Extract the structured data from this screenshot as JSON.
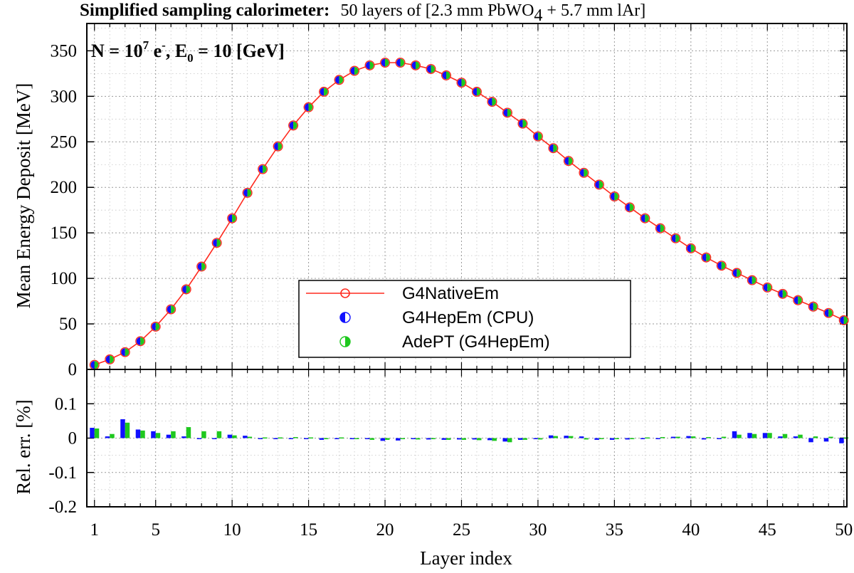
{
  "title": {
    "bold": "Simplified sampling calorimeter:",
    "detail_prefix": "50 layers of [2.3 mm PbWO",
    "detail_sub": "4",
    "detail_suffix": " + 5.7 mm lAr]"
  },
  "annotation": {
    "n_prefix": "N = 10",
    "n_exp": "7",
    "particle": " e",
    "particle_sup": "-",
    "e_prefix": ", E",
    "e_sub": "0",
    "e_suffix": " = 10 [GeV]"
  },
  "colors": {
    "native": "#ff2a1f",
    "hepem": "#1010ff",
    "adept": "#1ec81e",
    "grid": "#9a9a9a"
  },
  "chart_data": [
    {
      "type": "line",
      "xlabel": "Layer index",
      "ylabel": "Mean Energy Deposit [MeV]",
      "ylim": [
        0,
        380
      ],
      "xlim": [
        0.5,
        50.2
      ],
      "yticks": [
        "0",
        "50",
        "100",
        "150",
        "200",
        "250",
        "300",
        "350"
      ],
      "ytick_values": [
        0,
        50,
        100,
        150,
        200,
        250,
        300,
        350
      ],
      "xticks": [
        "1",
        "5",
        "10",
        "15",
        "20",
        "25",
        "30",
        "35",
        "40",
        "45",
        "50"
      ],
      "xtick_values": [
        1,
        5,
        10,
        15,
        20,
        25,
        30,
        35,
        40,
        45,
        50
      ],
      "grid": true,
      "legend_position": "bottom-center",
      "x": [
        1,
        2,
        3,
        4,
        5,
        6,
        7,
        8,
        9,
        10,
        11,
        12,
        13,
        14,
        15,
        16,
        17,
        18,
        19,
        20,
        21,
        22,
        23,
        24,
        25,
        26,
        27,
        28,
        29,
        30,
        31,
        32,
        33,
        34,
        35,
        36,
        37,
        38,
        39,
        40,
        41,
        42,
        43,
        44,
        45,
        46,
        47,
        48,
        49,
        50
      ],
      "series": [
        {
          "name": "G4NativeEm",
          "values": [
            5,
            11,
            19,
            31,
            47,
            66,
            88,
            113,
            139,
            166,
            194,
            220,
            245,
            268,
            288,
            305,
            318,
            328,
            334,
            337,
            337,
            334,
            330,
            323,
            315,
            305,
            294,
            282,
            270,
            256,
            243,
            229,
            216,
            203,
            190,
            178,
            166,
            155,
            144,
            133,
            123,
            114,
            106,
            98,
            90,
            83,
            76,
            69,
            62,
            54
          ]
        },
        {
          "name": "G4HepEm (CPU)",
          "values": [
            5,
            11,
            19,
            31,
            47,
            66,
            88,
            113,
            139,
            166,
            194,
            220,
            245,
            268,
            288,
            305,
            318,
            328,
            334,
            337,
            337,
            334,
            330,
            323,
            315,
            305,
            294,
            282,
            270,
            256,
            243,
            229,
            216,
            203,
            190,
            178,
            166,
            155,
            144,
            133,
            123,
            114,
            106,
            98,
            90,
            83,
            76,
            69,
            62,
            54
          ]
        },
        {
          "name": "AdePT (G4HepEm)",
          "values": [
            5,
            11,
            19,
            31,
            47,
            66,
            88,
            113,
            139,
            166,
            194,
            220,
            245,
            268,
            288,
            305,
            318,
            328,
            334,
            337,
            337,
            334,
            330,
            323,
            315,
            305,
            294,
            282,
            270,
            256,
            243,
            229,
            216,
            203,
            190,
            178,
            166,
            155,
            144,
            133,
            123,
            114,
            106,
            98,
            90,
            83,
            76,
            69,
            62,
            54
          ]
        }
      ]
    },
    {
      "type": "bar",
      "xlabel": "Layer index",
      "ylabel": "Rel. err. [%]",
      "ylim": [
        -0.2,
        0.2
      ],
      "yticks": [
        "-0.2",
        "-0.1",
        "0",
        "0.1"
      ],
      "ytick_values": [
        -0.2,
        -0.1,
        0,
        0.1
      ],
      "grid": true,
      "x": [
        1,
        2,
        3,
        4,
        5,
        6,
        7,
        8,
        9,
        10,
        11,
        12,
        13,
        14,
        15,
        16,
        17,
        18,
        19,
        20,
        21,
        22,
        23,
        24,
        25,
        26,
        27,
        28,
        29,
        30,
        31,
        32,
        33,
        34,
        35,
        36,
        37,
        38,
        39,
        40,
        41,
        42,
        43,
        44,
        45,
        46,
        47,
        48,
        49,
        50
      ],
      "series": [
        {
          "name": "G4HepEm (CPU)",
          "values": [
            0.03,
            0.005,
            0.055,
            0.025,
            0.02,
            0.01,
            0.005,
            0.0,
            0.0,
            0.01,
            0.007,
            0.0,
            0.0,
            0.0,
            0.0,
            -0.005,
            0.0,
            0.0,
            0.0,
            -0.008,
            -0.007,
            -0.003,
            -0.004,
            -0.005,
            -0.004,
            -0.004,
            -0.006,
            -0.01,
            -0.005,
            -0.003,
            0.008,
            0.007,
            0.005,
            -0.005,
            -0.005,
            -0.004,
            -0.003,
            -0.003,
            0.004,
            0.006,
            -0.004,
            -0.003,
            0.02,
            0.015,
            0.015,
            0.005,
            0.005,
            -0.012,
            -0.01,
            -0.015
          ]
        },
        {
          "name": "AdePT (G4HepEm)",
          "values": [
            0.028,
            0.012,
            0.045,
            0.022,
            0.015,
            0.02,
            0.032,
            0.02,
            0.02,
            0.008,
            0.004,
            0.002,
            0.002,
            0.003,
            0.002,
            0.0,
            0.002,
            -0.002,
            -0.005,
            -0.005,
            -0.003,
            -0.004,
            -0.003,
            -0.005,
            -0.005,
            -0.006,
            -0.008,
            -0.012,
            -0.005,
            -0.004,
            0.006,
            0.006,
            -0.004,
            -0.003,
            -0.003,
            -0.003,
            0.002,
            0.003,
            0.004,
            0.005,
            0.003,
            0.004,
            0.01,
            0.012,
            0.015,
            0.012,
            0.01,
            0.005,
            0.004,
            0.002
          ]
        }
      ]
    }
  ]
}
